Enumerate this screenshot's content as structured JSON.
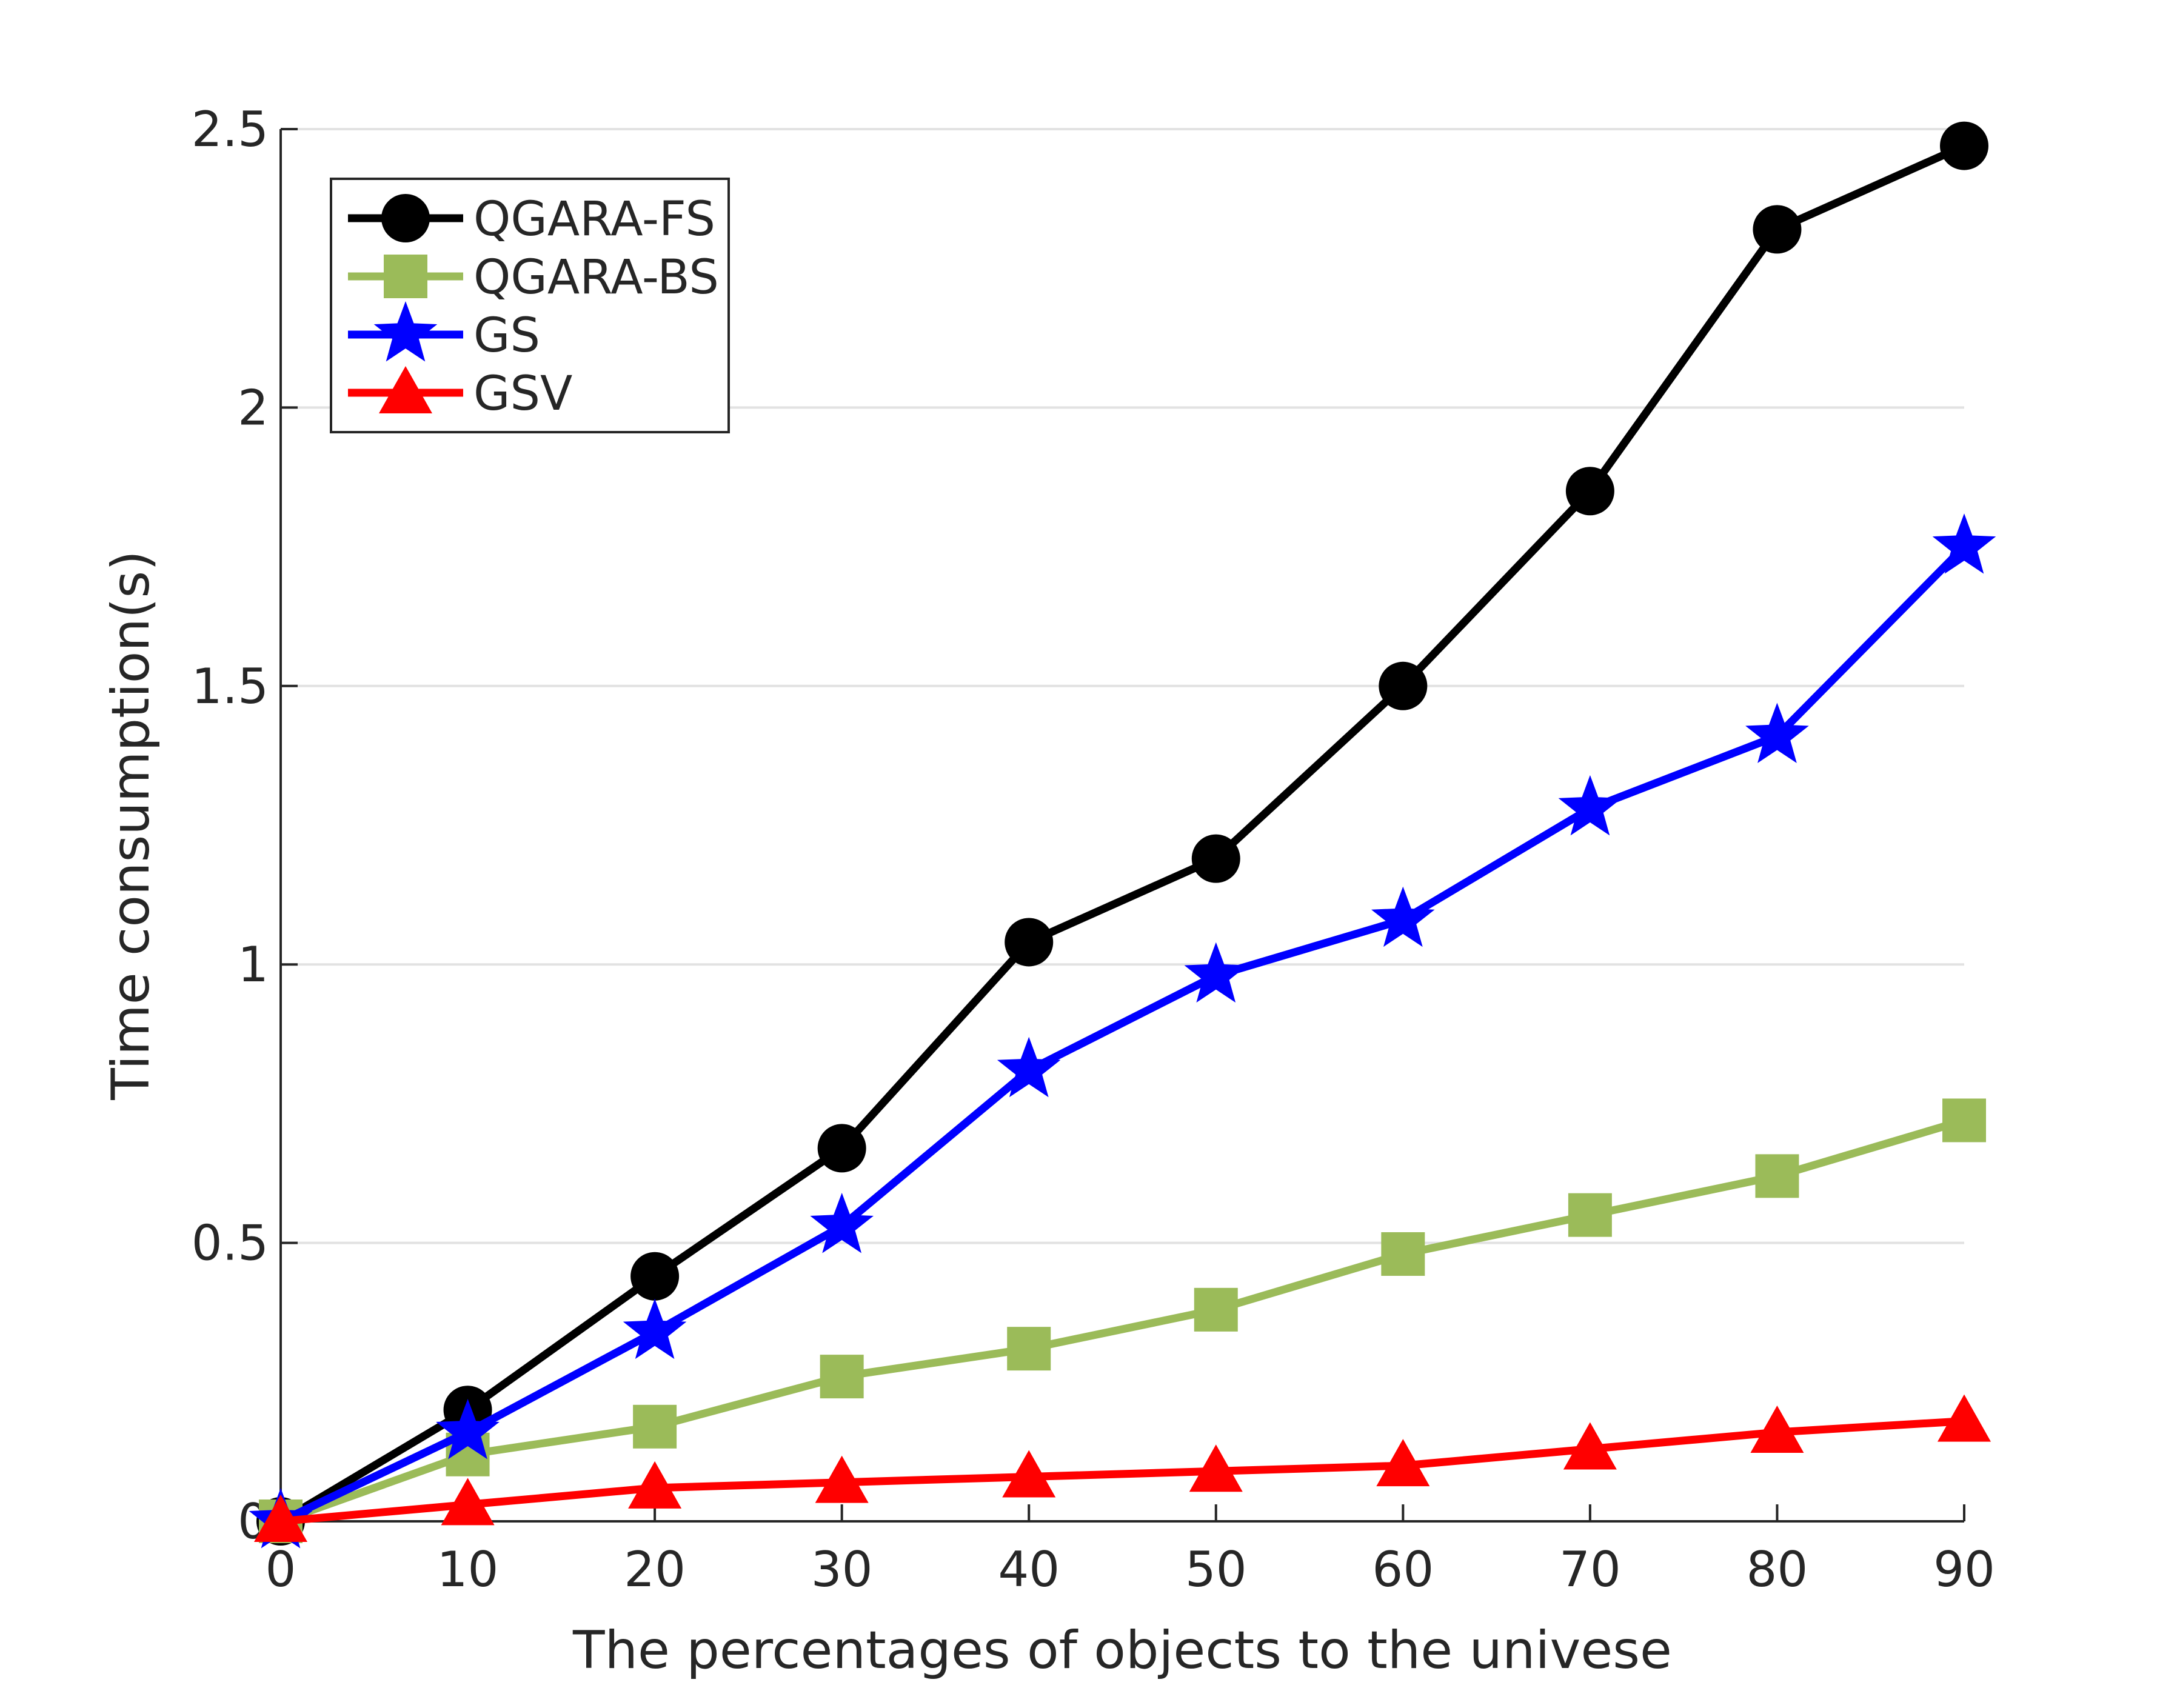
{
  "chart_data": {
    "type": "line",
    "title": "",
    "xlabel": "The percentages of objects to the univese",
    "ylabel": "Time consumption(s)",
    "x": [
      0,
      10,
      20,
      30,
      40,
      50,
      60,
      70,
      80,
      90
    ],
    "xlim": [
      0,
      90
    ],
    "ylim": [
      0,
      2.5
    ],
    "xticks": [
      0,
      10,
      20,
      30,
      40,
      50,
      60,
      70,
      80,
      90
    ],
    "yticks": [
      0,
      0.5,
      1,
      1.5,
      2,
      2.5
    ],
    "ytick_labels": [
      "0",
      "0.5",
      "1",
      "1.5",
      "2",
      "2.5"
    ],
    "grid": "horizontal",
    "legend_position": "top-left",
    "series": [
      {
        "name": "QGARA-FS",
        "color": "#000000",
        "marker": "circle",
        "values": [
          0,
          0.2,
          0.44,
          0.67,
          1.04,
          1.19,
          1.5,
          1.85,
          2.32,
          2.47
        ]
      },
      {
        "name": "QGARA-BS",
        "color": "#9bbb59",
        "marker": "square",
        "values": [
          0,
          0.12,
          0.17,
          0.26,
          0.31,
          0.38,
          0.48,
          0.55,
          0.62,
          0.72
        ]
      },
      {
        "name": "GS",
        "color": "#0000ff",
        "marker": "star",
        "values": [
          0,
          0.16,
          0.34,
          0.53,
          0.81,
          0.98,
          1.08,
          1.28,
          1.41,
          1.75
        ]
      },
      {
        "name": "GSV",
        "color": "#ff0000",
        "marker": "triangle",
        "values": [
          0,
          0.03,
          0.06,
          0.07,
          0.08,
          0.09,
          0.1,
          0.13,
          0.16,
          0.18
        ]
      }
    ]
  }
}
